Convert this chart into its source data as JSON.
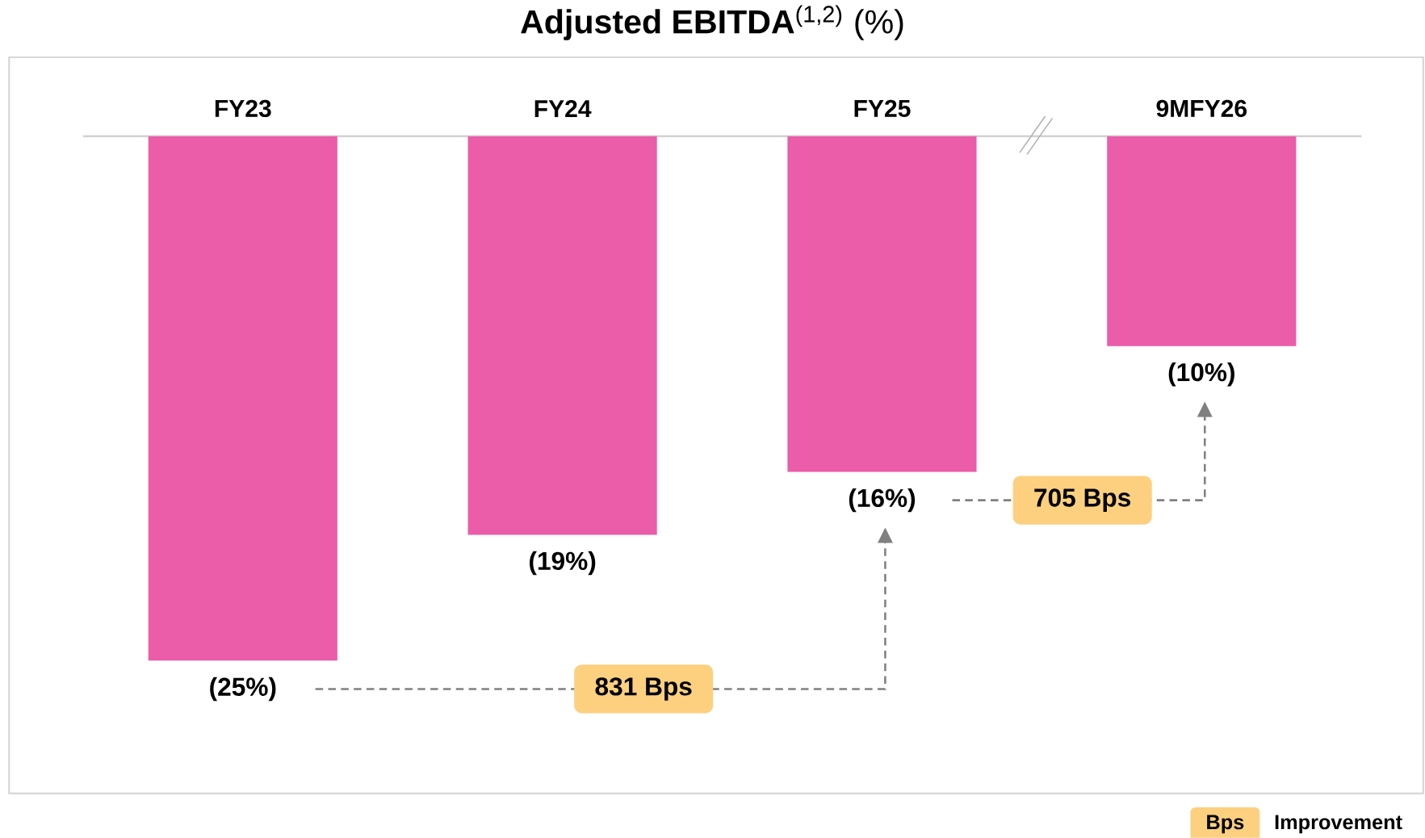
{
  "chart_data": {
    "type": "bar",
    "title": "**Adjusted EBITDA**$^{(1,2)}$ (%)",
    "categories": [
      "FY23",
      "FY24",
      "FY25",
      "9MFY26"
    ],
    "values": [
      -25,
      -19,
      -16,
      -10
    ],
    "value_labels": [
      "(25%)",
      "(19%)",
      "(16%)",
      "(10%)"
    ],
    "color": "#eb5ca9",
    "annotations": [
      "831 Bps",
      "705 Bps",
      "Bps",
      "Improvement"
    ]
  }
}
